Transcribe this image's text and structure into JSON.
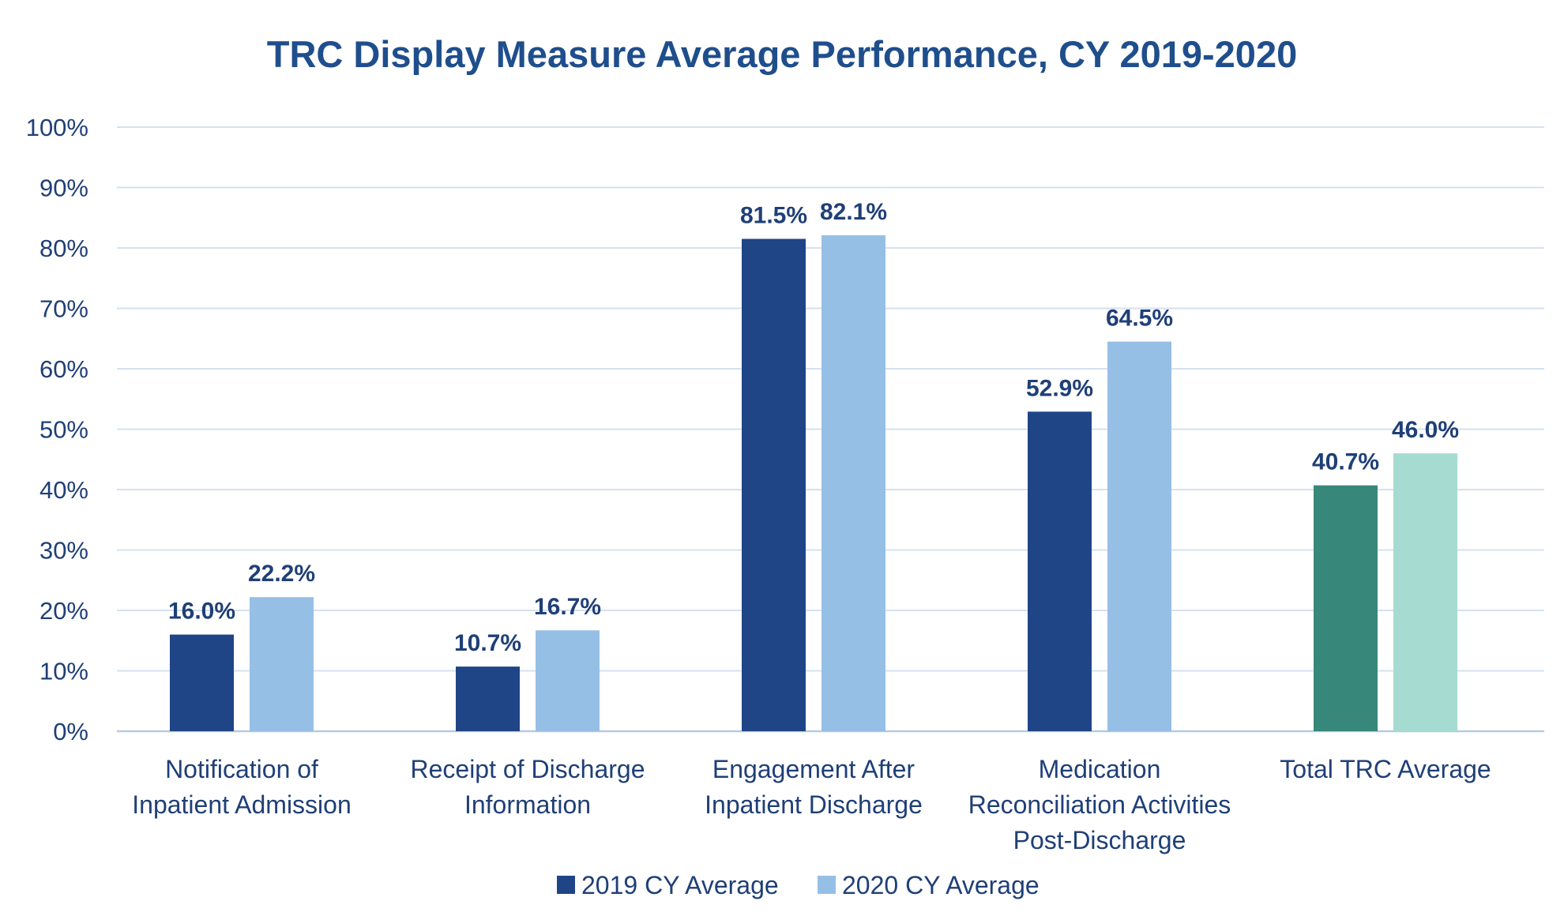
{
  "chart_data": {
    "type": "bar",
    "title": "TRC Display Measure Average Performance, CY 2019-2020",
    "xlabel": "",
    "ylabel": "",
    "ylim": [
      0,
      100
    ],
    "yticks": [
      "0%",
      "10%",
      "20%",
      "30%",
      "40%",
      "50%",
      "60%",
      "70%",
      "80%",
      "90%",
      "100%"
    ],
    "grid": true,
    "legend_position": "bottom",
    "categories": [
      [
        "Notification of",
        "Inpatient Admission"
      ],
      [
        "Receipt of Discharge",
        "Information"
      ],
      [
        "Engagement After",
        "Inpatient Discharge"
      ],
      [
        "Medication",
        "Reconciliation Activities",
        "Post-Discharge"
      ],
      [
        "Total TRC Average"
      ]
    ],
    "series": [
      {
        "name": "2019 CY Average",
        "values": [
          16.0,
          10.7,
          81.5,
          52.9,
          40.7
        ],
        "labels": [
          "16.0%",
          "10.7%",
          "81.5%",
          "52.9%",
          "40.7%"
        ],
        "color": "#1f4587",
        "colors": [
          "#1f4587",
          "#1f4587",
          "#1f4587",
          "#1f4587",
          "#37877a"
        ]
      },
      {
        "name": "2020 CY Average",
        "values": [
          22.2,
          16.7,
          82.1,
          64.5,
          46.0
        ],
        "labels": [
          "22.2%",
          "16.7%",
          "82.1%",
          "64.5%",
          "46.0%"
        ],
        "color": "#96bfe6",
        "colors": [
          "#96bfe6",
          "#96bfe6",
          "#96bfe6",
          "#96bfe6",
          "#a6dbd1"
        ]
      }
    ],
    "colors": {
      "title": "#1f4e8c",
      "text": "#1f3f77",
      "grid": "#d6e1ef",
      "axis": "#b7c9df"
    }
  }
}
